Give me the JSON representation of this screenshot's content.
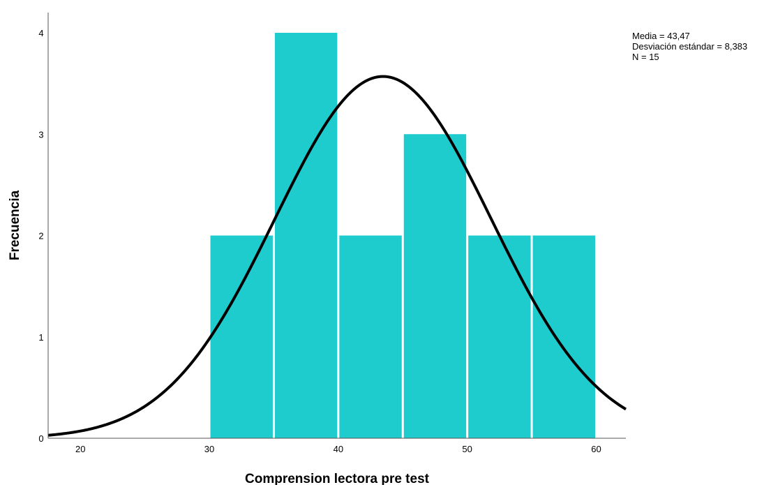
{
  "chart_data": {
    "type": "bar",
    "subtype": "histogram",
    "xlabel": "Comprension lectora pre test",
    "ylabel": "Frecuencia",
    "xlim": [
      17.5,
      62.3
    ],
    "ylim": [
      0,
      4.2
    ],
    "x_ticks": [
      20,
      30,
      40,
      50,
      60
    ],
    "y_ticks": [
      0,
      1,
      2,
      3,
      4
    ],
    "bin_width": 5,
    "bins": [
      {
        "start": 30,
        "end": 35,
        "count": 2
      },
      {
        "start": 35,
        "end": 40,
        "count": 4
      },
      {
        "start": 40,
        "end": 45,
        "count": 2
      },
      {
        "start": 45,
        "end": 50,
        "count": 3
      },
      {
        "start": 50,
        "end": 55,
        "count": 2
      },
      {
        "start": 55,
        "end": 60,
        "count": 2
      }
    ],
    "normal_curve": {
      "mean": 43.47,
      "std": 8.383,
      "n": 15
    },
    "bar_color": "#1ECBCD",
    "curve_color": "#000000",
    "stats_box": {
      "mean_text": "Media = 43,47",
      "std_text": "Desviación estándar = 8,383",
      "n_text": "N = 15"
    },
    "grid": false
  }
}
